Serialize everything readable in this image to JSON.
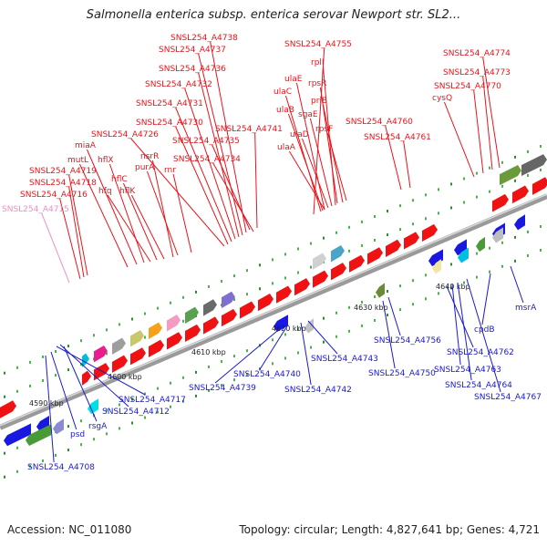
{
  "title": "Salmonella enterica subsp. enterica serovar Newport str. SL2...",
  "footer": {
    "accession": "Accession: NC_011080",
    "topology": "Topology: circular; Length: 4,827,641 bp; Genes: 4,721"
  },
  "colors": {
    "forward_label": "#e8141b",
    "reverse_label": "#1a1acc",
    "highlight_label": "#f08cc8",
    "backbone": "#9a9a9a",
    "forward_gene": "#f01212",
    "reverse_gene": "#1818e0"
  },
  "scale_labels": [
    "4590 kbp",
    "4600 kbp",
    "4610 kbp",
    "4620 kbp",
    "4630 kbp",
    "4640 kbp"
  ],
  "top_labels": [
    "SNSL254_A4738",
    "SNSL254_A4737",
    "SNSL254_A4736",
    "SNSL254_A4732",
    "SNSL254_A4731",
    "SNSL254_A4730",
    "SNSL254_A4726",
    "SNSL254_A4735",
    "SNSL254_A4741",
    "SNSL254_A4734",
    "miaA",
    "mutL",
    "hflX",
    "nsrR",
    "purA",
    "rnr",
    "hflC",
    "hfq",
    "hflK",
    "SNSL254_A4719",
    "SNSL254_A4718",
    "SNSL254_A4716",
    "SNSL254_A4715",
    "SNSL254_A4755",
    "rplI",
    "rpsR",
    "ulaE",
    "ulaC",
    "priB",
    "ulaB",
    "sgaE",
    "rpsF",
    "ulaD",
    "ulaA",
    "SNSL254_A4760",
    "SNSL254_A4761",
    "SNSL254_A4774",
    "SNSL254_A4773",
    "SNSL254_A4770",
    "cysQ"
  ],
  "bottom_labels": [
    "SNSL254_A4739",
    "SNSL254_A4740",
    "SNSL254_A4743",
    "SNSL254_A4742",
    "SNSL254_A4750",
    "SNSL254_A4756",
    "SNSL254_A4762",
    "SNSL254_A4763",
    "SNSL254_A4764",
    "SNSL254_A4767",
    "cpdB",
    "msrA",
    "SNSL254_A4717",
    "SNSL254_A4712",
    "rsgA",
    "psd",
    "SNSL254_A4708"
  ]
}
